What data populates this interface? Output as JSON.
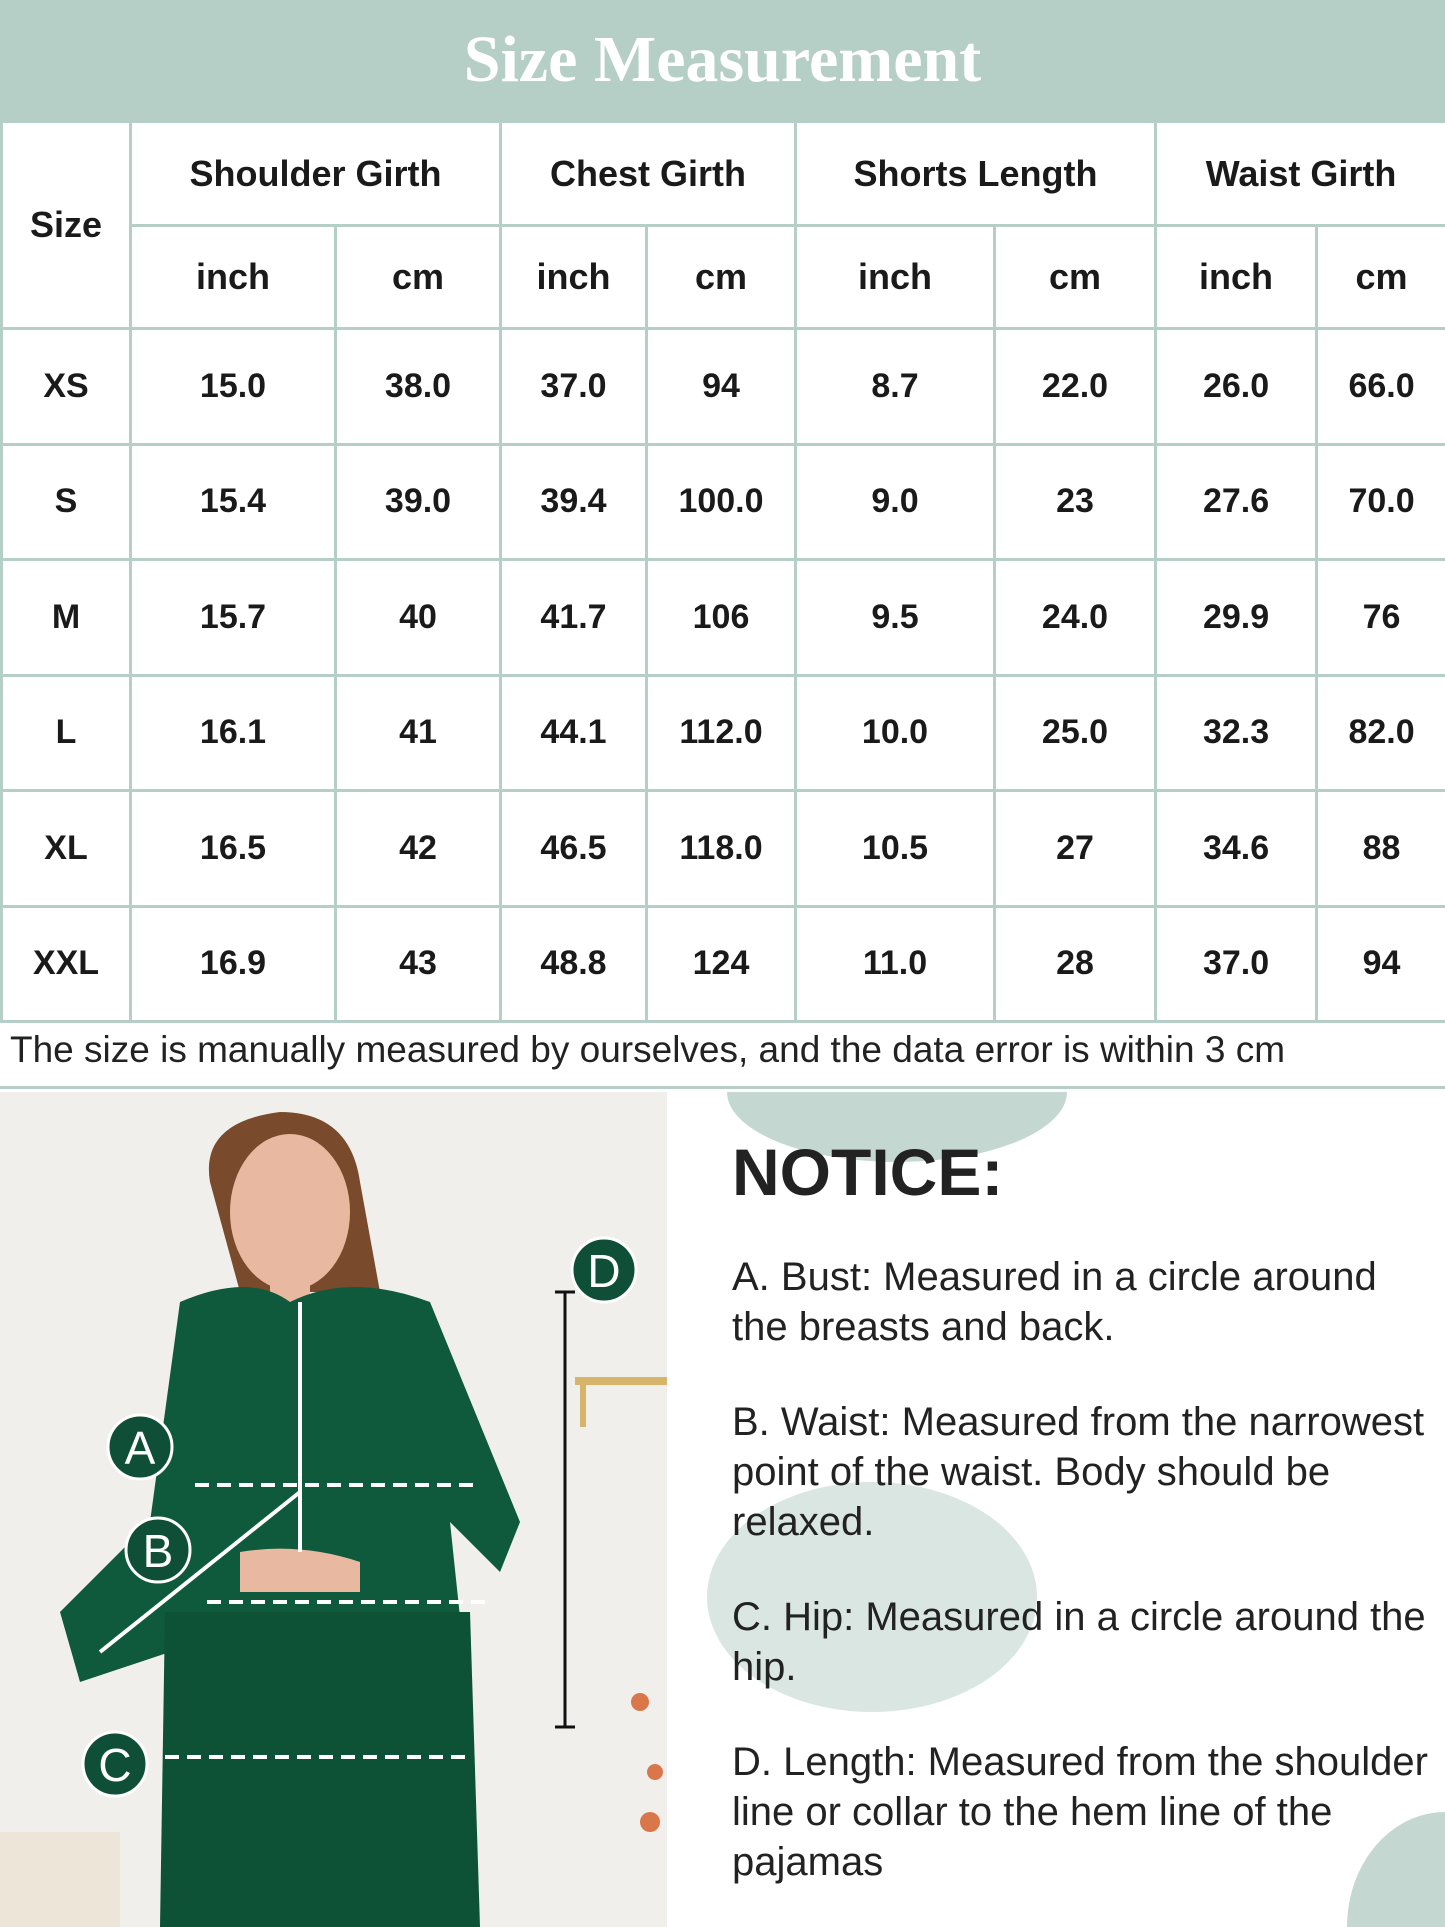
{
  "title": "Size Measurement",
  "table": {
    "size_header": "Size",
    "groups": [
      "Shoulder Girth",
      "Chest Girth",
      "Shorts Length",
      "Waist Girth"
    ],
    "units": [
      "inch",
      "cm",
      "inch",
      "cm",
      "inch",
      "cm",
      "inch",
      "cm"
    ],
    "rows": [
      [
        "XS",
        "15.0",
        "38.0",
        "37.0",
        "94",
        "8.7",
        "22.0",
        "26.0",
        "66.0"
      ],
      [
        "S",
        "15.4",
        "39.0",
        "39.4",
        "100.0",
        "9.0",
        "23",
        "27.6",
        "70.0"
      ],
      [
        "M",
        "15.7",
        "40",
        "41.7",
        "106",
        "9.5",
        "24.0",
        "29.9",
        "76"
      ],
      [
        "L",
        "16.1",
        "41",
        "44.1",
        "112.0",
        "10.0",
        "25.0",
        "32.3",
        "82.0"
      ],
      [
        "XL",
        "16.5",
        "42",
        "46.5",
        "118.0",
        "10.5",
        "27",
        "34.6",
        "88"
      ],
      [
        "XXL",
        "16.9",
        "43",
        "48.8",
        "124",
        "11.0",
        "28",
        "37.0",
        "94"
      ]
    ]
  },
  "caption": "The size is manually measured by ourselves, and the data error is within 3 cm",
  "photo": {
    "markers": [
      "A",
      "B",
      "C",
      "D"
    ],
    "garment_color": "#0f5a3c"
  },
  "notice": {
    "title": "NOTICE:",
    "items": [
      "A. Bust: Measured in a circle around the breasts and back.",
      "B. Waist: Measured from the narrowest point of the waist. Body should be relaxed.",
      "C. Hip: Measured in a circle around the hip.",
      "D. Length: Measured from the shoulder line or collar to the hem line of the pajamas"
    ]
  },
  "colors": {
    "accent": "#b5cec6",
    "marker": "#0f4f38"
  }
}
